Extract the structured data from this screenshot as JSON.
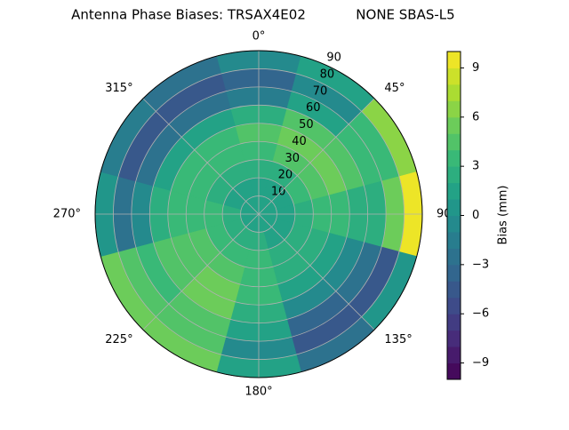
{
  "chart_data": {
    "type": "polar_contour",
    "title": [
      "Antenna Phase Biases: TRSAX4E02",
      "NONE SBAS-L5"
    ],
    "colormap": "viridis",
    "levels": 20,
    "rlim": [
      0,
      90
    ],
    "rticks": [
      10,
      20,
      30,
      40,
      50,
      60,
      70,
      80,
      90
    ],
    "thetaticks": [
      {
        "value": 0,
        "label": "0°"
      },
      {
        "value": 45,
        "label": "45°"
      },
      {
        "value": 90,
        "label": "90°"
      },
      {
        "value": 135,
        "label": "135°"
      },
      {
        "value": 180,
        "label": "180°"
      },
      {
        "value": 225,
        "label": "225°"
      },
      {
        "value": 270,
        "label": "270°"
      },
      {
        "value": 315,
        "label": "315°"
      }
    ],
    "grid": true,
    "zenith": [
      5,
      15,
      25,
      35,
      45,
      55,
      65,
      75,
      85
    ],
    "azimuth": [
      0,
      30,
      60,
      90,
      120,
      150,
      180,
      210,
      240,
      270,
      300,
      330
    ],
    "values": [
      [
        1,
        1,
        1,
        1,
        1,
        1,
        1,
        1,
        1,
        1,
        1,
        1
      ],
      [
        1,
        1,
        1,
        1,
        1,
        1,
        2,
        2,
        2,
        2,
        1,
        1
      ],
      [
        2,
        2,
        3,
        2,
        2,
        2,
        3,
        3,
        3,
        3,
        2,
        2
      ],
      [
        3,
        4,
        4,
        3,
        2,
        2,
        3,
        4,
        4,
        3,
        3,
        3
      ],
      [
        4,
        5,
        5,
        3,
        1,
        1,
        3,
        5,
        4,
        3,
        3,
        3
      ],
      [
        2,
        4,
        4,
        2,
        -1,
        -1,
        2,
        5,
        4,
        2,
        1,
        1
      ],
      [
        -2,
        1,
        3,
        2,
        -3,
        -4,
        1,
        4,
        3,
        -1,
        -3,
        -3
      ],
      [
        -4,
        -1,
        3,
        5,
        -5,
        -5,
        -1,
        4,
        4,
        -3,
        -5,
        -5
      ],
      [
        -1,
        1,
        6,
        9,
        0,
        -3,
        1,
        5,
        5,
        0,
        -2,
        -3
      ]
    ],
    "clim": [
      -10,
      10
    ],
    "cticks": [
      {
        "value": -9,
        "label": "−9"
      },
      {
        "value": -6,
        "label": "−6"
      },
      {
        "value": -3,
        "label": "−3"
      },
      0,
      3,
      6,
      9
    ],
    "clabel": "Bias (mm)"
  }
}
